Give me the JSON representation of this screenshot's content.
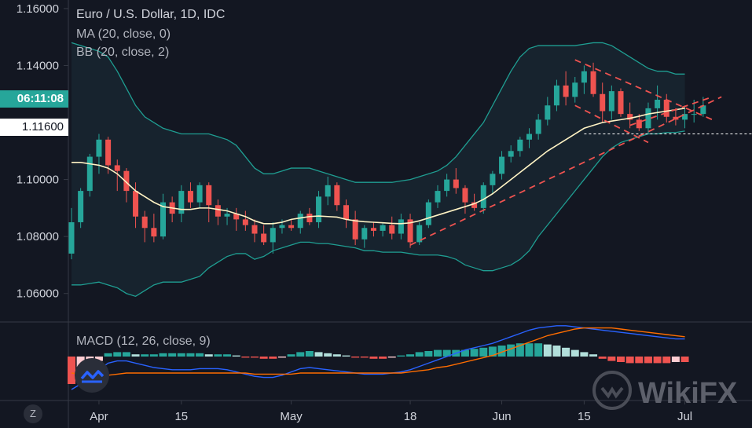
{
  "header": {
    "title": "Euro / U.S. Dollar, 1D, IDC",
    "ma_label": "MA (20, close, 0)",
    "bb_label": "BB (20, close, 2)",
    "macd_label": "MACD (12, 26, close, 9)"
  },
  "price_axis": {
    "ticks": [
      "1.16000",
      "1.14000",
      "1.12000",
      "1.10000",
      "1.08000",
      "1.06000"
    ],
    "countdown_label": "06:11:08",
    "level_label": "1.11600"
  },
  "time_axis": {
    "labels": [
      "Apr",
      "15",
      "May",
      "18",
      "Jun",
      "15",
      "Jul"
    ]
  },
  "watermark": {
    "text": "WikiFX"
  },
  "colors": {
    "background": "#131722",
    "up": "#26a69a",
    "down": "#ef5350",
    "ma": "#fff3c4",
    "bb": "#1f9e92",
    "macd": "#2962ff",
    "signal": "#ff6d00",
    "trendline": "#ef5350"
  },
  "chart_data": {
    "type": "candlestick",
    "symbol": "EUR/USD",
    "timeframe": "1D",
    "ylim": [
      1.05,
      1.163
    ],
    "x_ticks": [
      {
        "label": "Apr",
        "index": 3
      },
      {
        "label": "15",
        "index": 12
      },
      {
        "label": "May",
        "index": 24
      },
      {
        "label": "18",
        "index": 37
      },
      {
        "label": "Jun",
        "index": 47
      },
      {
        "label": "15",
        "index": 56
      },
      {
        "label": "Jul",
        "index": 67
      }
    ],
    "candles": [
      [
        1.074,
        1.09,
        1.072,
        1.085
      ],
      [
        1.085,
        1.097,
        1.083,
        1.096
      ],
      [
        1.096,
        1.109,
        1.094,
        1.108
      ],
      [
        1.108,
        1.116,
        1.102,
        1.114
      ],
      [
        1.114,
        1.115,
        1.102,
        1.105
      ],
      [
        1.105,
        1.107,
        1.096,
        1.103
      ],
      [
        1.103,
        1.104,
        1.092,
        1.096
      ],
      [
        1.096,
        1.099,
        1.083,
        1.087
      ],
      [
        1.087,
        1.089,
        1.078,
        1.083
      ],
      [
        1.083,
        1.088,
        1.078,
        1.08
      ],
      [
        1.08,
        1.095,
        1.079,
        1.092
      ],
      [
        1.092,
        1.094,
        1.085,
        1.088
      ],
      [
        1.088,
        1.098,
        1.085,
        1.096
      ],
      [
        1.096,
        1.099,
        1.09,
        1.092
      ],
      [
        1.092,
        1.099,
        1.09,
        1.098
      ],
      [
        1.098,
        1.099,
        1.085,
        1.091
      ],
      [
        1.091,
        1.093,
        1.084,
        1.087
      ],
      [
        1.087,
        1.09,
        1.084,
        1.088
      ],
      [
        1.088,
        1.09,
        1.082,
        1.086
      ],
      [
        1.086,
        1.089,
        1.082,
        1.084
      ],
      [
        1.084,
        1.086,
        1.078,
        1.081
      ],
      [
        1.081,
        1.084,
        1.077,
        1.078
      ],
      [
        1.078,
        1.085,
        1.074,
        1.083
      ],
      [
        1.083,
        1.086,
        1.081,
        1.084
      ],
      [
        1.084,
        1.086,
        1.082,
        1.083
      ],
      [
        1.083,
        1.089,
        1.081,
        1.088
      ],
      [
        1.088,
        1.09,
        1.084,
        1.085
      ],
      [
        1.085,
        1.096,
        1.083,
        1.094
      ],
      [
        1.094,
        1.101,
        1.091,
        1.098
      ],
      [
        1.098,
        1.099,
        1.089,
        1.091
      ],
      [
        1.091,
        1.093,
        1.083,
        1.086
      ],
      [
        1.086,
        1.089,
        1.077,
        1.079
      ],
      [
        1.079,
        1.084,
        1.076,
        1.083
      ],
      [
        1.083,
        1.085,
        1.08,
        1.082
      ],
      [
        1.082,
        1.085,
        1.08,
        1.084
      ],
      [
        1.084,
        1.087,
        1.079,
        1.081
      ],
      [
        1.081,
        1.088,
        1.079,
        1.086
      ],
      [
        1.086,
        1.088,
        1.076,
        1.078
      ],
      [
        1.078,
        1.085,
        1.077,
        1.084
      ],
      [
        1.084,
        1.093,
        1.083,
        1.092
      ],
      [
        1.092,
        1.098,
        1.09,
        1.096
      ],
      [
        1.096,
        1.102,
        1.094,
        1.1
      ],
      [
        1.1,
        1.104,
        1.095,
        1.097
      ],
      [
        1.097,
        1.098,
        1.088,
        1.092
      ],
      [
        1.092,
        1.095,
        1.089,
        1.09
      ],
      [
        1.09,
        1.099,
        1.088,
        1.098
      ],
      [
        1.098,
        1.103,
        1.095,
        1.102
      ],
      [
        1.102,
        1.11,
        1.1,
        1.108
      ],
      [
        1.108,
        1.112,
        1.106,
        1.11
      ],
      [
        1.11,
        1.115,
        1.108,
        1.114
      ],
      [
        1.114,
        1.118,
        1.111,
        1.116
      ],
      [
        1.116,
        1.123,
        1.114,
        1.121
      ],
      [
        1.121,
        1.129,
        1.119,
        1.126
      ],
      [
        1.126,
        1.135,
        1.124,
        1.133
      ],
      [
        1.133,
        1.138,
        1.126,
        1.129
      ],
      [
        1.129,
        1.136,
        1.127,
        1.134
      ],
      [
        1.134,
        1.14,
        1.13,
        1.138
      ],
      [
        1.138,
        1.141,
        1.129,
        1.13
      ],
      [
        1.13,
        1.134,
        1.12,
        1.124
      ],
      [
        1.124,
        1.133,
        1.121,
        1.131
      ],
      [
        1.131,
        1.132,
        1.122,
        1.123
      ],
      [
        1.123,
        1.127,
        1.118,
        1.121
      ],
      [
        1.121,
        1.123,
        1.117,
        1.118
      ],
      [
        1.118,
        1.127,
        1.116,
        1.125
      ],
      [
        1.125,
        1.133,
        1.121,
        1.128
      ],
      [
        1.128,
        1.13,
        1.12,
        1.122
      ],
      [
        1.122,
        1.125,
        1.119,
        1.121
      ],
      [
        1.121,
        1.126,
        1.118,
        1.123
      ],
      [
        1.123,
        1.128,
        1.12,
        1.123
      ],
      [
        1.123,
        1.129,
        1.122,
        1.126
      ]
    ],
    "ma20": [
      1.106,
      1.106,
      1.1055,
      1.105,
      1.104,
      1.102,
      1.099,
      1.096,
      1.094,
      1.092,
      1.0905,
      1.09,
      1.0895,
      1.0895,
      1.09,
      1.09,
      1.0895,
      1.089,
      1.088,
      1.087,
      1.0855,
      1.0845,
      1.0845,
      1.085,
      1.086,
      1.0865,
      1.087,
      1.0872,
      1.087,
      1.0868,
      1.086,
      1.0855,
      1.0852,
      1.085,
      1.0848,
      1.0846,
      1.0845,
      1.0848,
      1.0855,
      1.0865,
      1.0875,
      1.0885,
      1.0895,
      1.0905,
      1.0915,
      1.093,
      1.095,
      1.0975,
      1.1,
      1.1025,
      1.105,
      1.1075,
      1.11,
      1.112,
      1.114,
      1.116,
      1.118,
      1.119,
      1.12,
      1.1205,
      1.121,
      1.1215,
      1.1222,
      1.123,
      1.1235,
      1.124,
      1.1245,
      1.125
    ],
    "bb_upper": [
      1.148,
      1.147,
      1.146,
      1.145,
      1.143,
      1.138,
      1.132,
      1.126,
      1.122,
      1.12,
      1.118,
      1.117,
      1.116,
      1.116,
      1.116,
      1.116,
      1.115,
      1.114,
      1.112,
      1.108,
      1.104,
      1.102,
      1.102,
      1.103,
      1.104,
      1.104,
      1.104,
      1.103,
      1.102,
      1.101,
      1.1,
      1.099,
      1.099,
      1.099,
      1.099,
      1.099,
      1.0995,
      1.1,
      1.101,
      1.102,
      1.103,
      1.105,
      1.108,
      1.112,
      1.116,
      1.12,
      1.126,
      1.132,
      1.138,
      1.143,
      1.146,
      1.147,
      1.147,
      1.147,
      1.147,
      1.147,
      1.1475,
      1.148,
      1.148,
      1.147,
      1.145,
      1.143,
      1.141,
      1.139,
      1.138,
      1.138,
      1.137,
      1.137
    ],
    "bb_lower": [
      1.063,
      1.063,
      1.0635,
      1.064,
      1.063,
      1.062,
      1.06,
      1.059,
      1.061,
      1.063,
      1.064,
      1.064,
      1.064,
      1.065,
      1.066,
      1.069,
      1.071,
      1.073,
      1.074,
      1.074,
      1.072,
      1.073,
      1.075,
      1.076,
      1.077,
      1.078,
      1.078,
      1.0775,
      1.0775,
      1.077,
      1.0765,
      1.076,
      1.075,
      1.075,
      1.0745,
      1.0745,
      1.0745,
      1.074,
      1.0735,
      1.0735,
      1.0735,
      1.073,
      1.072,
      1.07,
      1.069,
      1.068,
      1.068,
      1.069,
      1.07,
      1.072,
      1.075,
      1.08,
      1.084,
      1.088,
      1.092,
      1.096,
      1.1,
      1.104,
      1.108,
      1.111,
      1.113,
      1.114,
      1.115,
      1.116,
      1.116,
      1.1165,
      1.1165,
      1.117
    ],
    "macd": {
      "range": [
        -0.004,
        0.003
      ],
      "histogram": [
        -0.0025,
        -0.0018,
        -0.001,
        -0.0004,
        0.0003,
        0.0004,
        0.0004,
        0.0002,
        0.0002,
        0.0002,
        0.0003,
        0.0003,
        0.0003,
        0.0003,
        0.0003,
        0.0002,
        0.0002,
        0.0002,
        0.0001,
        -0.0001,
        -0.0001,
        -0.0002,
        -0.0002,
        -0.0001,
        0.0002,
        0.0004,
        0.0005,
        0.0004,
        0.0003,
        0.0002,
        0.0001,
        -0.0001,
        -0.0001,
        -0.0002,
        -0.0002,
        -0.0001,
        0.0001,
        0.0002,
        0.0004,
        0.0005,
        0.0006,
        0.0006,
        0.0006,
        0.0006,
        0.0007,
        0.0008,
        0.0009,
        0.001,
        0.0011,
        0.0012,
        0.0012,
        0.0012,
        0.0011,
        0.001,
        0.0008,
        0.0006,
        0.0004,
        0.0002,
        -0.0002,
        -0.0004,
        -0.0005,
        -0.0006,
        -0.0006,
        -0.0006,
        -0.0006,
        -0.0006,
        -0.0005,
        -0.0005
      ],
      "macd": [
        -0.003,
        -0.0025,
        -0.0018,
        -0.0012,
        -0.0006,
        -0.0004,
        -0.0004,
        -0.0006,
        -0.0008,
        -0.001,
        -0.0011,
        -0.0012,
        -0.0012,
        -0.0012,
        -0.0011,
        -0.0011,
        -0.0011,
        -0.0012,
        -0.0014,
        -0.0016,
        -0.0018,
        -0.0019,
        -0.0019,
        -0.0017,
        -0.0014,
        -0.0011,
        -0.001,
        -0.0011,
        -0.0012,
        -0.0013,
        -0.0014,
        -0.0015,
        -0.0016,
        -0.0016,
        -0.0016,
        -0.0015,
        -0.0014,
        -0.0012,
        -0.0009,
        -0.0006,
        -0.0003,
        0.0,
        0.0003,
        0.0006,
        0.0008,
        0.001,
        0.0012,
        0.0015,
        0.0018,
        0.0021,
        0.0024,
        0.0026,
        0.0027,
        0.0028,
        0.0028,
        0.0027,
        0.0026,
        0.0025,
        0.0024,
        0.0023,
        0.0022,
        0.0021,
        0.002,
        0.0019,
        0.0018,
        0.0017,
        0.0016,
        0.0016
      ],
      "signal": [
        -0.0015,
        -0.0016,
        -0.0017,
        -0.0017,
        -0.0017,
        -0.0016,
        -0.0015,
        -0.0015,
        -0.0015,
        -0.0015,
        -0.0015,
        -0.0015,
        -0.0015,
        -0.0015,
        -0.0015,
        -0.0015,
        -0.0015,
        -0.0015,
        -0.0015,
        -0.0015,
        -0.0016,
        -0.0016,
        -0.0016,
        -0.0016,
        -0.0016,
        -0.0015,
        -0.0015,
        -0.0015,
        -0.0015,
        -0.0015,
        -0.0015,
        -0.0015,
        -0.0015,
        -0.0015,
        -0.0015,
        -0.0015,
        -0.0015,
        -0.0014,
        -0.0013,
        -0.0012,
        -0.001,
        -0.0009,
        -0.0007,
        -0.0005,
        -0.0003,
        -0.0001,
        0.0001,
        0.0004,
        0.0007,
        0.001,
        0.0013,
        0.0016,
        0.0019,
        0.0021,
        0.0023,
        0.0025,
        0.0026,
        0.0026,
        0.0026,
        0.0026,
        0.0025,
        0.0024,
        0.0023,
        0.0022,
        0.0021,
        0.002,
        0.0019,
        0.0018
      ]
    },
    "trendlines": [
      {
        "style": "dashed",
        "from": [
          37,
          1.077
        ],
        "to": [
          71,
          1.129
        ]
      },
      {
        "style": "dashed",
        "from": [
          55,
          1.142
        ],
        "to": [
          70,
          1.121
        ]
      },
      {
        "style": "dashed",
        "from": [
          55,
          1.126
        ],
        "to": [
          63,
          1.113
        ]
      },
      {
        "style": "dashed",
        "from": [
          61,
          1.119
        ],
        "to": [
          70,
          1.129
        ]
      }
    ],
    "horizontal_levels": [
      {
        "label": "1.11600",
        "value": 1.116,
        "style": "dotted"
      }
    ]
  }
}
